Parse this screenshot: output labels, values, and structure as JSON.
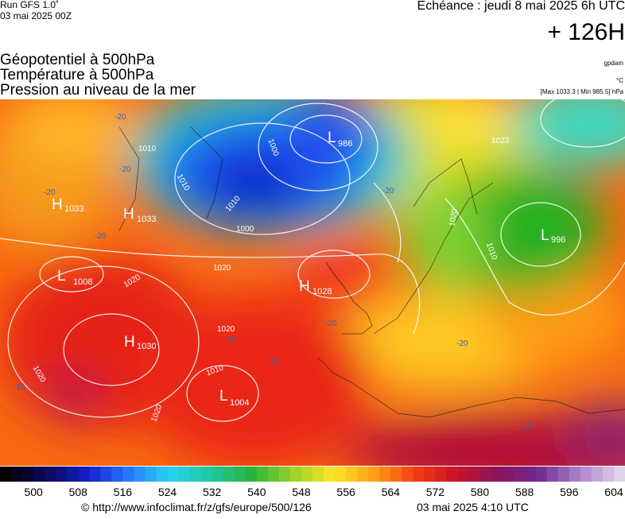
{
  "header": {
    "run": "Run GFS 1.0˚",
    "run_date": "03 mai 2025 00Z",
    "valid": "Echéance : jeudi 8 mai 2025 6h UTC",
    "lead": "+ 126H",
    "fields": [
      "Géopotentiel à 500hPa",
      "Température à 500hPa",
      "Pression au niveau de la mer"
    ],
    "units": [
      "gpdam",
      "°C",
      "[Max 1033.3 | Min 985.5] hPa"
    ]
  },
  "map": {
    "centers": [
      {
        "type": "L",
        "value": "986"
      },
      {
        "type": "H",
        "value": "1033"
      },
      {
        "type": "H",
        "value": "1033"
      },
      {
        "type": "L",
        "value": "996"
      },
      {
        "type": "H",
        "value": "1028"
      },
      {
        "type": "H",
        "value": "1030"
      },
      {
        "type": "L",
        "value": "1004"
      },
      {
        "type": "L",
        "value": "1008"
      }
    ],
    "isobar_labels": [
      "1010",
      "1000",
      "1010",
      "1010",
      "1000",
      "1020",
      "1020",
      "1020",
      "1010",
      "1020",
      "1020",
      "1020",
      "1010",
      "1023"
    ],
    "temperature_labels": [
      "-20",
      "-20",
      "-20",
      "-20",
      "-20",
      "-20",
      "-20",
      "-20",
      "-10",
      "-10",
      "-20"
    ]
  },
  "colorbar": {
    "ticks": [
      500,
      508,
      516,
      524,
      532,
      540,
      548,
      556,
      564,
      572,
      580,
      588,
      596,
      604
    ]
  },
  "footer": {
    "source": "© http://www.infoclimat.fr/z/gfs/europe/500/126",
    "issued": "03 mai 2025  4:10 UTC"
  }
}
